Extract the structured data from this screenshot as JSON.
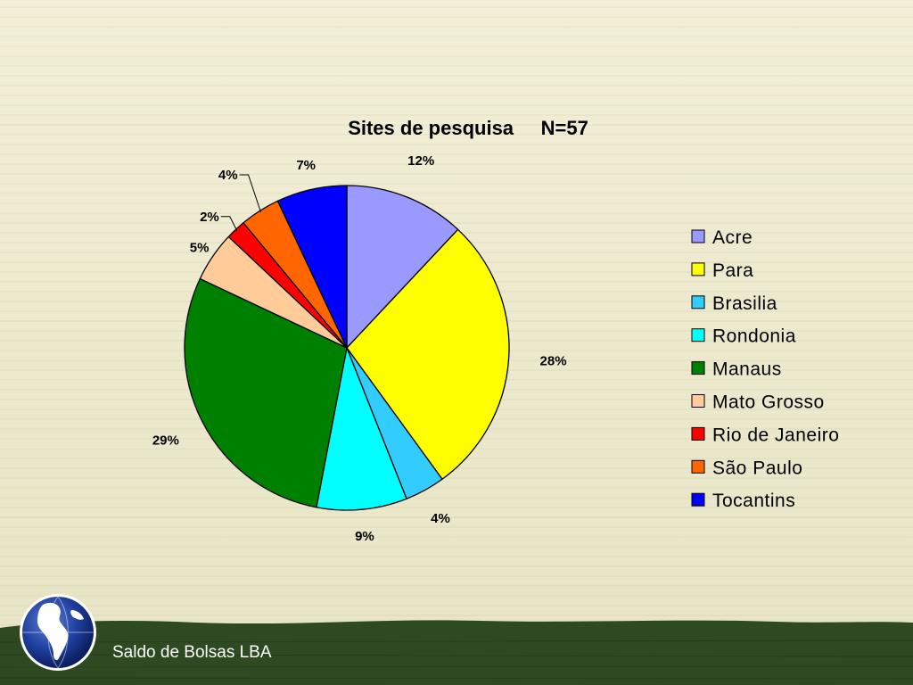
{
  "footer": {
    "text": "Saldo de Bolsas LBA",
    "band_color": "#2f4a22",
    "logo_icon": "globe-icon"
  },
  "chart_data": {
    "type": "pie",
    "title": "Sites de pesquisa     N=57",
    "categories": [
      "Acre",
      "Para",
      "Brasilia",
      "Rondonia",
      "Manaus",
      "Mato Grosso",
      "Rio de Janeiro",
      "São Paulo",
      "Tocantins"
    ],
    "values": [
      12,
      28,
      4,
      9,
      29,
      5,
      2,
      4,
      7
    ],
    "labels": [
      "12%",
      "28%",
      "4%",
      "9%",
      "29%",
      "5%",
      "2%",
      "4%",
      "7%"
    ],
    "colors": [
      "#9999ff",
      "#ffff00",
      "#33ccff",
      "#00ffff",
      "#008000",
      "#ffcc99",
      "#ff0000",
      "#ff6600",
      "#0000ff"
    ],
    "start_angle": "12 o'clock",
    "direction": "clockwise",
    "legend_position": "right"
  }
}
